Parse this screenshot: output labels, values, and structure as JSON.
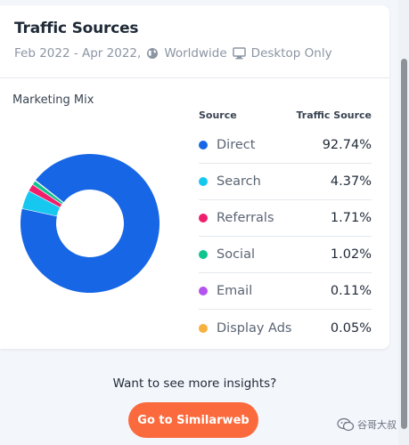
{
  "card": {
    "title": "Traffic Sources",
    "date_range": "Feb 2022 - Apr 2022,",
    "region": "Worldwide",
    "device": "Desktop Only",
    "icons": {
      "region": "globe-icon",
      "device": "desktop-icon"
    }
  },
  "marketing_mix": {
    "label": "Marketing Mix",
    "header_source": "Source",
    "header_value": "Traffic Source"
  },
  "chart_data": {
    "type": "pie",
    "title": "",
    "categories": [
      "Direct",
      "Search",
      "Referrals",
      "Social",
      "Email",
      "Display Ads"
    ],
    "values": [
      92.74,
      4.37,
      1.71,
      1.02,
      0.11,
      0.05
    ],
    "labels": [
      "92.74%",
      "4.37%",
      "1.71%",
      "1.02%",
      "0.11%",
      "0.05%"
    ],
    "colors": [
      "#1766e5",
      "#16c8ef",
      "#f01f6c",
      "#0fc48f",
      "#b453ed",
      "#f7b13f"
    ],
    "donut": true,
    "legend": "right"
  },
  "cta": {
    "text": "Want to see more insights?",
    "button_label": "Go to Similarweb"
  },
  "watermark": {
    "text": "谷哥大叔",
    "icon": "wechat-icon"
  }
}
